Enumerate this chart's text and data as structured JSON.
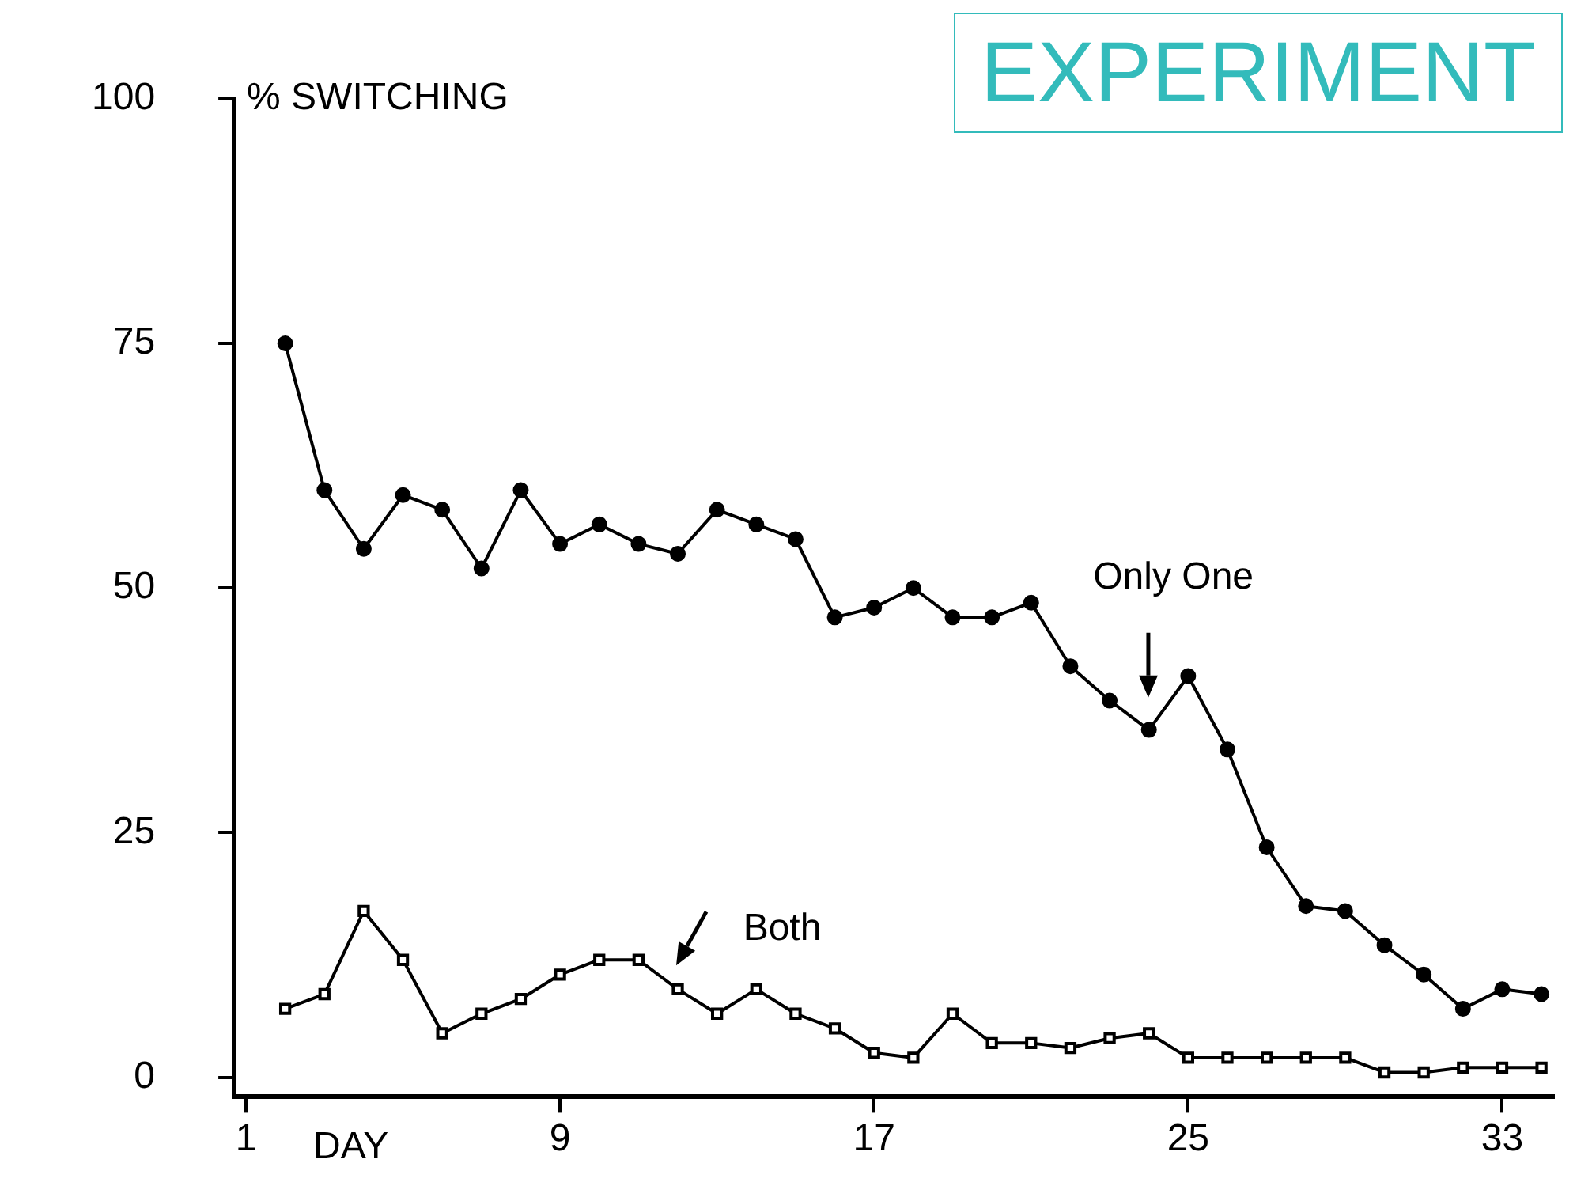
{
  "chart_data": {
    "type": "line",
    "title": "EXPERIMENT",
    "xlabel": "DAY",
    "ylabel": "% SWITCHING",
    "xlim": [
      0.7,
      34.3
    ],
    "xticks": [
      1,
      9,
      17,
      25,
      33
    ],
    "ylim": [
      -2,
      100
    ],
    "yticks": [
      0,
      25,
      50,
      75,
      100
    ],
    "grid": false,
    "legend": false,
    "x": [
      2,
      3,
      4,
      5,
      6,
      7,
      8,
      9,
      10,
      11,
      12,
      13,
      14,
      15,
      16,
      17,
      18,
      19,
      20,
      21,
      22,
      23,
      24,
      25,
      26,
      27,
      28,
      29,
      30,
      31,
      32,
      33,
      34
    ],
    "series": [
      {
        "color": "#000000",
        "marker": "circle",
        "values": [
          75,
          60,
          54,
          59.5,
          58,
          52,
          60,
          54.5,
          56.5,
          54.5,
          53.5,
          58,
          56.5,
          55,
          47,
          48,
          50,
          47,
          47,
          48.5,
          42,
          38.5,
          35.5,
          41,
          33.5,
          23.5,
          17.5,
          17,
          13.5,
          10.5,
          7,
          9,
          8.5
        ]
      },
      {
        "color": "#000000",
        "marker": "square",
        "values": [
          7,
          8.5,
          17,
          12,
          4.5,
          6.5,
          8,
          10.5,
          12,
          12,
          9,
          6.5,
          9,
          6.5,
          5,
          2.5,
          2,
          6.5,
          3.5,
          3.5,
          3,
          4,
          4.5,
          2,
          2,
          2,
          2,
          2,
          0.5,
          0.5,
          1,
          1,
          1
        ]
      }
    ],
    "annotations": [
      "Only One",
      {
        "text": "Both",
        "x": 12,
        "y": 9
      }
    ]
  }
}
